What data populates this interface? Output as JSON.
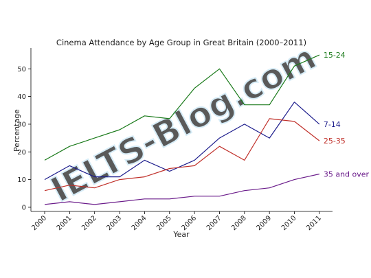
{
  "chart_data": {
    "type": "line",
    "title": "Cinema Attendance by Age Group in Great Britain (2000–2011)",
    "xlabel": "Year",
    "ylabel": "Percentage",
    "categories": [
      "2000",
      "2001",
      "2002",
      "2003",
      "2004",
      "2005",
      "2006",
      "2007",
      "2008",
      "2009",
      "2010",
      "2011"
    ],
    "yticks": [
      0,
      10,
      20,
      30,
      40,
      50
    ],
    "ylim": [
      -1.5,
      57.5
    ],
    "grid": false,
    "legend": "labels at line ends",
    "series": [
      {
        "name": "15-24",
        "color": "#1a7a1a",
        "values": [
          17,
          22,
          25,
          28,
          33,
          32,
          43,
          50,
          37,
          37,
          51,
          55
        ]
      },
      {
        "name": "7-14",
        "color": "#1c1c8c",
        "values": [
          10,
          15,
          11,
          11,
          17,
          13,
          17,
          25,
          30,
          25,
          38,
          30
        ]
      },
      {
        "name": "25-35",
        "color": "#c0302a",
        "values": [
          6,
          8,
          7,
          10,
          11,
          14,
          15,
          22,
          17,
          32,
          31,
          24
        ]
      },
      {
        "name": "35 and over",
        "color": "#6a1b8a",
        "values": [
          1,
          2,
          1,
          2,
          3,
          3,
          4,
          4,
          6,
          7,
          10,
          12
        ]
      }
    ]
  },
  "watermark": "IELTS-Blog.com"
}
